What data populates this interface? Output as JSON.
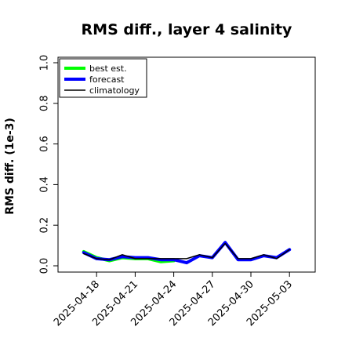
{
  "chart_data": {
    "type": "line",
    "title": "RMS diff., layer 4 salinity",
    "ylabel": "RMS diff. (1e-3)",
    "xlabel": "",
    "ylim": [
      0.0,
      1.0
    ],
    "yticks": [
      "0.0",
      "0.2",
      "0.4",
      "0.6",
      "0.8",
      "1.0"
    ],
    "ytick_values": [
      0.0,
      0.2,
      0.4,
      0.6,
      0.8,
      1.0
    ],
    "xticks": [
      {
        "date": "2025-04-18",
        "label": "2025-04-18",
        "color": "#000000"
      },
      {
        "date": "2025-04-21",
        "label": "2025-04-21",
        "color": "#000000"
      },
      {
        "date": "2025-04-24",
        "label": "2025-04-24",
        "color": "#228b22"
      },
      {
        "date": "2025-04-27",
        "label": "2025-04-27",
        "color": "#000000"
      },
      {
        "date": "2025-04-30",
        "label": "2025-04-30",
        "color": "#000000"
      },
      {
        "date": "2025-05-03",
        "label": "2025-05-03",
        "color": "#000000"
      }
    ],
    "xrange": [
      "2025-04-15",
      "2025-05-05"
    ],
    "legend_position": "top-left",
    "grid": false,
    "x": [
      "2025-04-17",
      "2025-04-18",
      "2025-04-19",
      "2025-04-20",
      "2025-04-21",
      "2025-04-22",
      "2025-04-23",
      "2025-04-24",
      "2025-04-25",
      "2025-04-26",
      "2025-04-27",
      "2025-04-28",
      "2025-04-29",
      "2025-04-30",
      "2025-05-01",
      "2025-05-02",
      "2025-05-03"
    ],
    "series": [
      {
        "name": "best est.",
        "color": "#00ff00",
        "width": 4,
        "x": [
          "2025-04-17",
          "2025-04-18",
          "2025-04-19",
          "2025-04-20",
          "2025-04-21",
          "2025-04-22",
          "2025-04-23",
          "2025-04-24"
        ],
        "values": [
          0.07,
          0.04,
          0.025,
          0.04,
          0.035,
          0.035,
          0.02,
          0.025
        ]
      },
      {
        "name": "forecast",
        "color": "#0000ff",
        "width": 4,
        "x": [
          "2025-04-17",
          "2025-04-18",
          "2025-04-19",
          "2025-04-20",
          "2025-04-21",
          "2025-04-22",
          "2025-04-23",
          "2025-04-24",
          "2025-04-25",
          "2025-04-26",
          "2025-04-27",
          "2025-04-28",
          "2025-04-29",
          "2025-04-30",
          "2025-05-01",
          "2025-05-02",
          "2025-05-03"
        ],
        "values": [
          0.065,
          0.035,
          0.03,
          0.045,
          0.04,
          0.04,
          0.03,
          0.03,
          0.015,
          0.05,
          0.04,
          0.115,
          0.03,
          0.03,
          0.05,
          0.04,
          0.08
        ]
      },
      {
        "name": "climatology",
        "color": "#000000",
        "width": 1.5,
        "x": [
          "2025-04-17",
          "2025-04-18",
          "2025-04-19",
          "2025-04-20",
          "2025-04-21",
          "2025-04-22",
          "2025-04-23",
          "2025-04-24",
          "2025-04-25",
          "2025-04-26",
          "2025-04-27",
          "2025-04-28",
          "2025-04-29",
          "2025-04-30",
          "2025-05-01",
          "2025-05-02",
          "2025-05-03"
        ],
        "values": [
          0.06,
          0.035,
          0.03,
          0.055,
          0.035,
          0.035,
          0.035,
          0.035,
          0.035,
          0.055,
          0.04,
          0.11,
          0.035,
          0.035,
          0.055,
          0.035,
          0.08
        ]
      }
    ]
  }
}
